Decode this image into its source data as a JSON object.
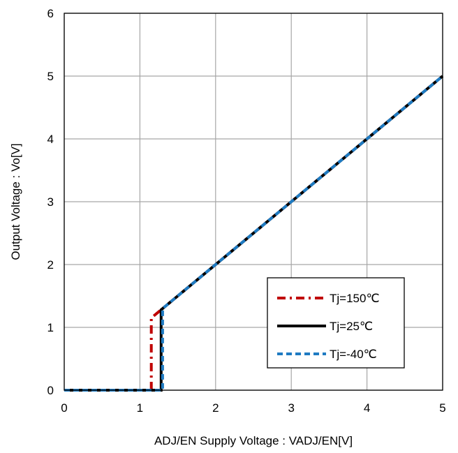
{
  "chart_data": {
    "type": "line",
    "title": "",
    "xlabel": "ADJ/EN Supply Voltage : VADJ/EN[V]",
    "ylabel": "Output Voltage : Vo[V]",
    "xlim": [
      0,
      5
    ],
    "ylim": [
      0,
      6
    ],
    "xticks": [
      "0",
      "1",
      "2",
      "3",
      "4",
      "5"
    ],
    "yticks": [
      "0",
      "1",
      "2",
      "3",
      "4",
      "5",
      "6"
    ],
    "grid": true,
    "legend_position": "bottom-right",
    "series": [
      {
        "name": "Tj=150℃",
        "color": "#c00000",
        "style": "dash-dot",
        "x": [
          1.15,
          1.15,
          5.0
        ],
        "y": [
          0.0,
          1.15,
          5.0
        ]
      },
      {
        "name": "Tj=25℃",
        "color": "#000000",
        "style": "solid",
        "x": [
          0.0,
          1.28,
          1.28,
          5.0
        ],
        "y": [
          0.0,
          0.0,
          1.28,
          5.0
        ]
      },
      {
        "name": "Tj=-40℃",
        "color": "#1f7bc2",
        "style": "dashed",
        "x": [
          0.0,
          1.3,
          1.3,
          5.0
        ],
        "y": [
          0.0,
          0.0,
          1.3,
          5.0
        ]
      }
    ]
  }
}
